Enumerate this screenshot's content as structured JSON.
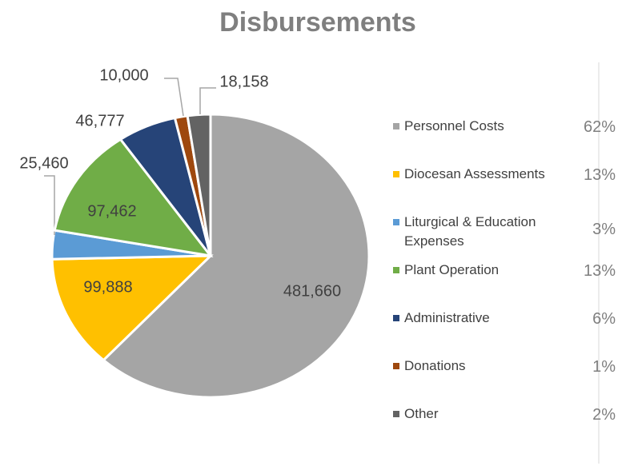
{
  "chart_data": {
    "type": "pie",
    "title": "Disbursements",
    "categories": [
      "Personnel Costs",
      "Diocesan Assessments",
      "Liturgical & Education Expenses",
      "Plant Operation",
      "Administrative",
      "Donations",
      "Other"
    ],
    "values": [
      481660,
      99888,
      25460,
      97462,
      46777,
      10000,
      18158
    ],
    "value_labels": [
      "481,660",
      "99,888",
      "25,460",
      "97,462",
      "46,777",
      "10,000",
      "18,158"
    ],
    "percent_labels": [
      "62%",
      "13%",
      "3%",
      "13%",
      "6%",
      "1%",
      "2%"
    ],
    "colors": [
      "#a5a5a5",
      "#ffc000",
      "#5b9bd5",
      "#70ad47",
      "#264478",
      "#9e480e",
      "#636363"
    ],
    "legend": "right"
  }
}
